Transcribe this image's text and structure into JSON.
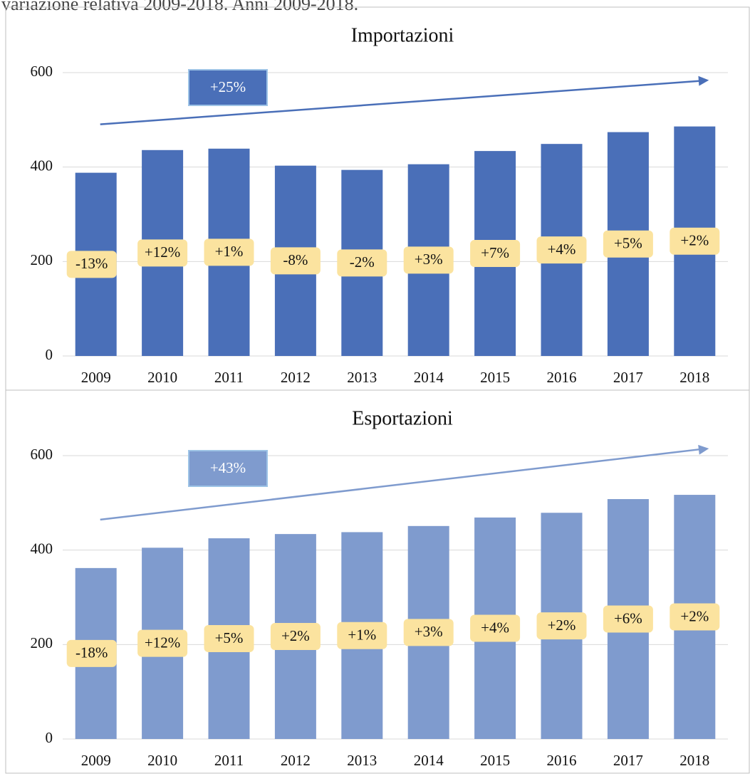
{
  "caption": "variazione relativa 2009-2018. Anni 2009-2018.",
  "chart_data": [
    {
      "type": "bar",
      "title": "Importazioni",
      "categories": [
        "2009",
        "2010",
        "2011",
        "2012",
        "2013",
        "2014",
        "2015",
        "2016",
        "2017",
        "2018"
      ],
      "values": [
        388,
        436,
        439,
        403,
        394,
        406,
        434,
        449,
        474,
        486
      ],
      "change_labels": [
        "-13%",
        "+12%",
        "+1%",
        "-8%",
        "-2%",
        "+3%",
        "+7%",
        "+4%",
        "+5%",
        "+2%"
      ],
      "trend_label": "+25%",
      "color": "#4a6fb8",
      "trend_color": "#4a6fb8",
      "ylim": [
        0,
        600
      ],
      "yticks": [
        0,
        200,
        400,
        600
      ],
      "grid": true
    },
    {
      "type": "bar",
      "title": "Esportazioni",
      "categories": [
        "2009",
        "2010",
        "2011",
        "2012",
        "2013",
        "2014",
        "2015",
        "2016",
        "2017",
        "2018"
      ],
      "values": [
        362,
        405,
        425,
        434,
        438,
        451,
        469,
        479,
        508,
        517
      ],
      "change_labels": [
        "-18%",
        "+12%",
        "+5%",
        "+2%",
        "+1%",
        "+3%",
        "+4%",
        "+2%",
        "+6%",
        "+2%"
      ],
      "trend_label": "+43%",
      "color": "#7f9bce",
      "trend_color": "#7f9bce",
      "ylim": [
        0,
        600
      ],
      "yticks": [
        0,
        200,
        400,
        600
      ],
      "grid": true
    }
  ]
}
